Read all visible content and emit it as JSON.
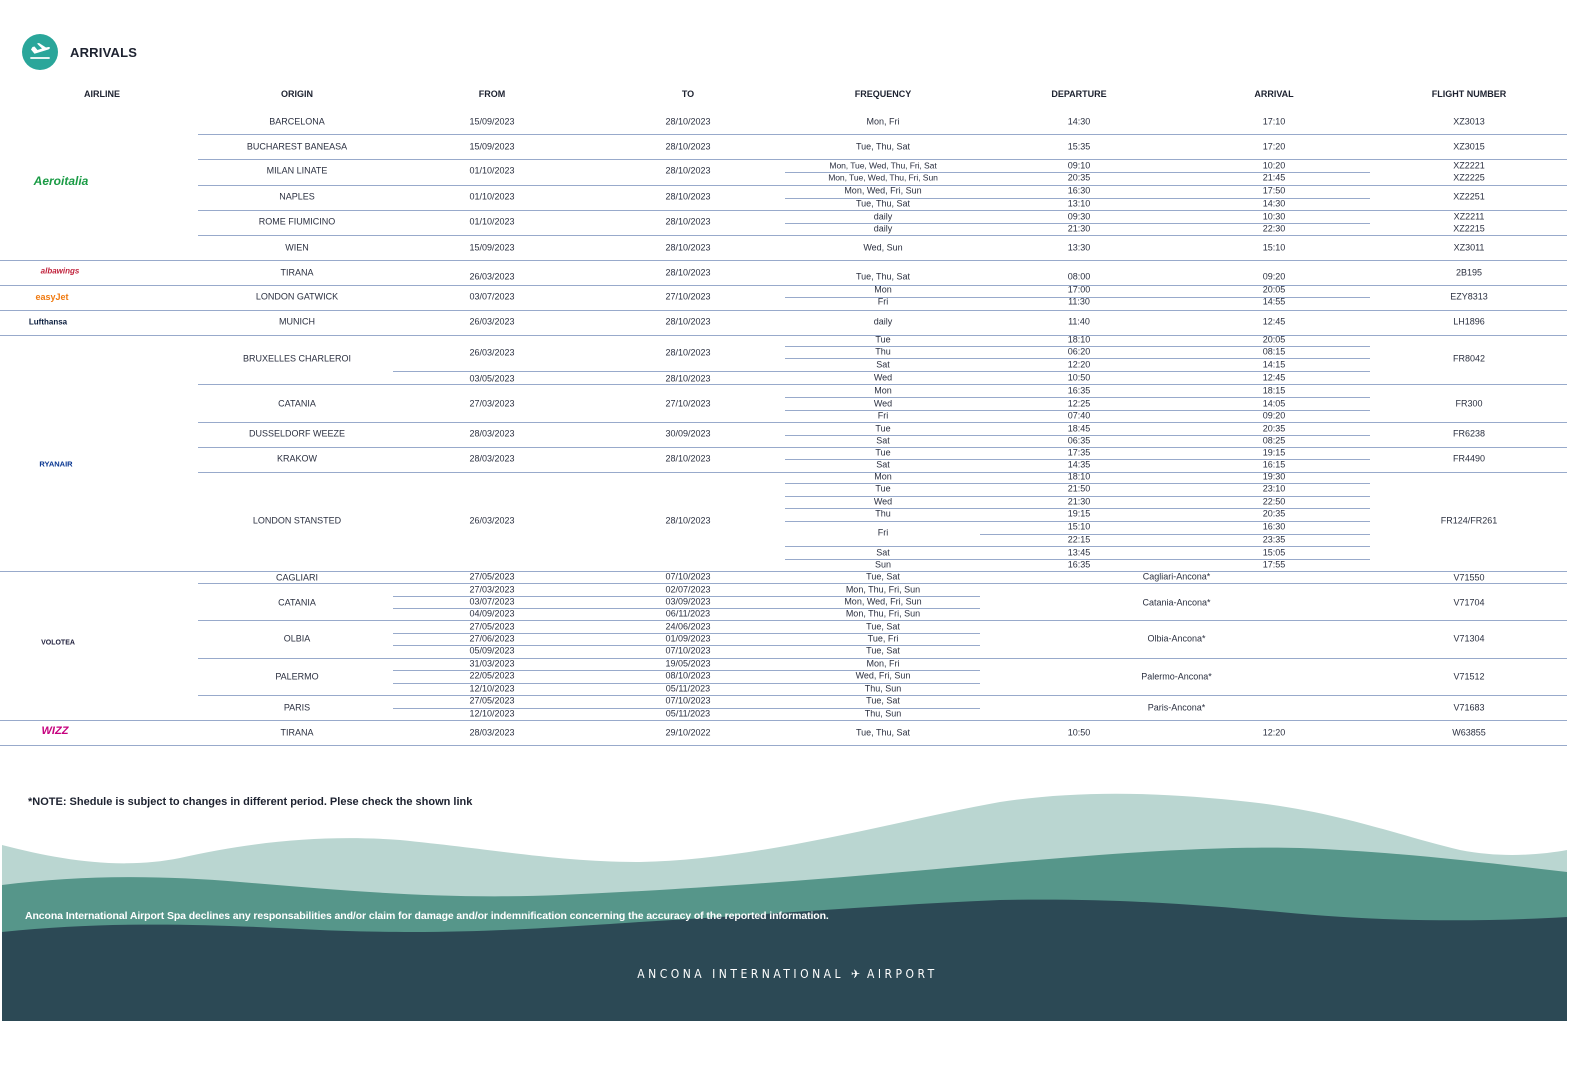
{
  "header": {
    "title": "ARRIVALS",
    "icon": "plane-landing-icon"
  },
  "columns": [
    "AIRLINE",
    "ORIGIN",
    "FROM",
    "TO",
    "FREQUENCY",
    "DEPARTURE",
    "ARRIVAL",
    "FLIGHT NUMBER"
  ],
  "airlines": [
    {
      "name": "Aeroitalia",
      "color": "#1a9b45"
    },
    {
      "name": "albawings",
      "color": "#c0213b"
    },
    {
      "name": "easyJet",
      "color": "#f07a10"
    },
    {
      "name": "Lufthansa",
      "color": "#0a1d3d"
    },
    {
      "name": "RYANAIR",
      "color": "#073590"
    },
    {
      "name": "VOLOTEA",
      "color": "#1c1c3a"
    },
    {
      "name": "WIZZ",
      "color": "#c6007e"
    }
  ],
  "rows": [
    [
      "BARCELONA",
      "15/09/2023",
      "28/10/2023",
      "Mon, Fri",
      "14:30",
      "17:10",
      "XZ3013"
    ],
    [
      "BUCHAREST BANEASA",
      "15/09/2023",
      "28/10/2023",
      "Tue, Thu, Sat",
      "15:35",
      "17:20",
      "XZ3015"
    ],
    [
      "MILAN LINATE",
      "01/10/2023",
      "28/10/2023",
      "Mon, Tue, Wed, Thu, Fri, Sat",
      "09:10",
      "10:20",
      "XZ2221"
    ],
    [
      "",
      "",
      "",
      "Mon, Tue, Wed, Thu, Fri, Sun",
      "20:35",
      "21:45",
      "XZ2225"
    ],
    [
      "NAPLES",
      "01/10/2023",
      "28/10/2023",
      "Mon, Wed, Fri, Sun",
      "16:30",
      "17:50",
      "XZ2251"
    ],
    [
      "",
      "",
      "",
      "Tue, Thu, Sat",
      "13:10",
      "14:30",
      ""
    ],
    [
      "ROME FIUMICINO",
      "01/10/2023",
      "28/10/2023",
      "daily",
      "09:30",
      "10:30",
      "XZ2211"
    ],
    [
      "",
      "",
      "",
      "daily",
      "21:30",
      "22:30",
      "XZ2215"
    ],
    [
      "WIEN",
      "15/09/2023",
      "28/10/2023",
      "Wed, Sun",
      "13:30",
      "15:10",
      "XZ3011"
    ],
    [
      "TIRANA",
      "26/03/2023",
      "28/10/2023",
      "Tue, Thu, Sat",
      "08:00",
      "09:20",
      "2B195"
    ],
    [
      "LONDON GATWICK",
      "03/07/2023",
      "27/10/2023",
      "Mon",
      "17:00",
      "20:05",
      "EZY8313"
    ],
    [
      "",
      "",
      "",
      "Fri",
      "11:30",
      "14:55",
      ""
    ],
    [
      "MUNICH",
      "26/03/2023",
      "28/10/2023",
      "daily",
      "11:40",
      "12:45",
      "LH1896"
    ],
    [
      "BRUXELLES CHARLEROI",
      "26/03/2023",
      "28/10/2023",
      "Tue",
      "18:10",
      "20:05",
      "FR8042"
    ],
    [
      "",
      "",
      "",
      "Thu",
      "06:20",
      "08:15",
      ""
    ],
    [
      "",
      "",
      "",
      "Sat",
      "12:20",
      "14:15",
      ""
    ],
    [
      "",
      "03/05/2023",
      "28/10/2023",
      "Wed",
      "10:50",
      "12:45",
      ""
    ],
    [
      "CATANIA",
      "27/03/2023",
      "27/10/2023",
      "Mon",
      "16:35",
      "18:15",
      "FR300"
    ],
    [
      "",
      "",
      "",
      "Wed",
      "12:25",
      "14:05",
      ""
    ],
    [
      "",
      "",
      "",
      "Fri",
      "07:40",
      "09:20",
      ""
    ],
    [
      "DUSSELDORF WEEZE",
      "28/03/2023",
      "30/09/2023",
      "Tue",
      "18:45",
      "20:35",
      "FR6238"
    ],
    [
      "",
      "",
      "",
      "Sat",
      "06:35",
      "08:25",
      ""
    ],
    [
      "KRAKOW",
      "28/03/2023",
      "28/10/2023",
      "Tue",
      "17:35",
      "19:15",
      "FR4490"
    ],
    [
      "",
      "",
      "",
      "Sat",
      "14:35",
      "16:15",
      ""
    ],
    [
      "LONDON STANSTED",
      "26/03/2023",
      "28/10/2023",
      "Mon",
      "18:10",
      "19:30",
      "FR124/FR261"
    ],
    [
      "",
      "",
      "",
      "Tue",
      "21:50",
      "23:10",
      ""
    ],
    [
      "",
      "",
      "",
      "Wed",
      "21:30",
      "22:50",
      ""
    ],
    [
      "",
      "",
      "",
      "Thu",
      "19:15",
      "20:35",
      ""
    ],
    [
      "",
      "",
      "",
      "Fri",
      "15:10",
      "16:30",
      ""
    ],
    [
      "",
      "",
      "",
      "",
      "22:15",
      "23:35",
      ""
    ],
    [
      "",
      "",
      "",
      "Sat",
      "13:45",
      "15:05",
      ""
    ],
    [
      "",
      "",
      "",
      "Sun",
      "16:35",
      "17:55",
      ""
    ],
    [
      "CAGLIARI",
      "27/05/2023",
      "07/10/2023",
      "Tue, Sat",
      "Cagliari-Ancona*",
      "",
      "V71550"
    ],
    [
      "CATANIA",
      "27/03/2023",
      "02/07/2023",
      "Mon, Thu, Fri, Sun",
      "Catania-Ancona*",
      "",
      "V71704"
    ],
    [
      "",
      "03/07/2023",
      "03/09/2023",
      "Mon, Wed, Fri, Sun",
      "",
      "",
      ""
    ],
    [
      "",
      "04/09/2023",
      "06/11/2023",
      "Mon, Thu, Fri, Sun",
      "",
      "",
      ""
    ],
    [
      "OLBIA",
      "27/05/2023",
      "24/06/2023",
      "Tue, Sat",
      "Olbia-Ancona*",
      "",
      "V71304"
    ],
    [
      "",
      "27/06/2023",
      "01/09/2023",
      "Tue, Fri",
      "",
      "",
      ""
    ],
    [
      "",
      "05/09/2023",
      "07/10/2023",
      "Tue, Sat",
      "",
      "",
      ""
    ],
    [
      "PALERMO",
      "31/03/2023",
      "19/05/2023",
      "Mon, Fri",
      "Palermo-Ancona*",
      "",
      "V71512"
    ],
    [
      "",
      "22/05/2023",
      "08/10/2023",
      "Wed, Fri, Sun",
      "",
      "",
      ""
    ],
    [
      "",
      "12/10/2023",
      "05/11/2023",
      "Thu, Sun",
      "",
      "",
      ""
    ],
    [
      "PARIS",
      "27/05/2023",
      "07/10/2023",
      "Tue, Sat",
      "Paris-Ancona*",
      "",
      "V71683"
    ],
    [
      "",
      "12/10/2023",
      "05/11/2023",
      "Thu, Sun",
      "",
      "",
      ""
    ],
    [
      "TIRANA",
      "28/03/2023",
      "29/10/2022",
      "Tue, Thu, Sat",
      "10:50",
      "12:20",
      "W63855"
    ]
  ],
  "note": "*NOTE: Shedule is subject to changes in different period. Plese check the shown link",
  "disclaimer": "Ancona International Airport Spa declines any responsabilities and/or claim for damage and/or indemnification concerning the accuracy of the reported information.",
  "footer_brand": "ANCONA INTERNATIONAL",
  "footer_brand_2": "AIRPORT"
}
